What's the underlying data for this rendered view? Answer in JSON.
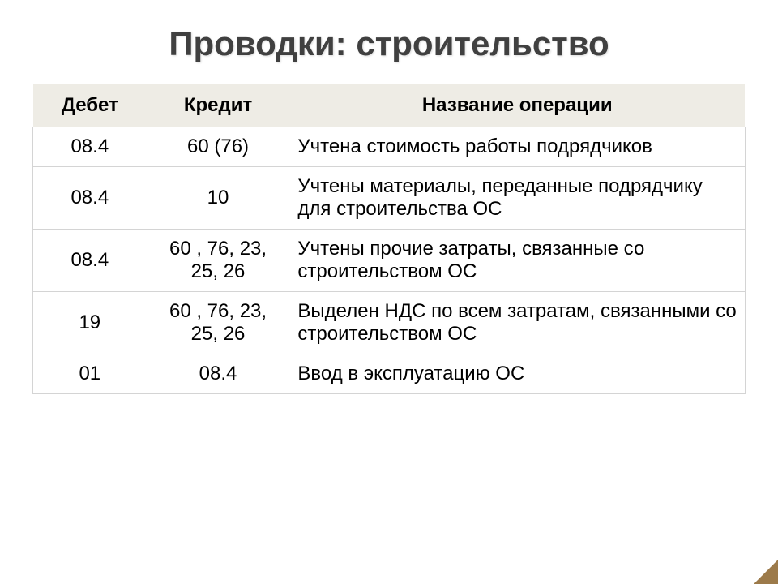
{
  "title": "Проводки: строительство",
  "table": {
    "columns": [
      {
        "label": "Дебет",
        "width": "16%",
        "align": "center"
      },
      {
        "label": "Кредит",
        "width": "20%",
        "align": "center"
      },
      {
        "label": "Название операции",
        "width": "64%",
        "align": "left"
      }
    ],
    "rows": [
      {
        "debit": "08.4",
        "credit": "60 (76)",
        "operation": "Учтена стоимость работы подрядчиков"
      },
      {
        "debit": "08.4",
        "credit": "10",
        "operation": "Учтены материалы, переданные подрядчику  для строительства ОС"
      },
      {
        "debit": "08.4",
        "credit": "60 , 76, 23, 25, 26",
        "operation": "Учтены прочие затраты, связанные со строительством ОС"
      },
      {
        "debit": "19",
        "credit": "60 , 76, 23, 25, 26",
        "operation": "Выделен НДС по всем затратам, связанными со строительством ОС"
      },
      {
        "debit": "01",
        "credit": "08.4",
        "operation": "Ввод в эксплуатацию ОС"
      }
    ],
    "header_bg": "#eeece5",
    "border_color": "#d4d4d4",
    "text_color": "#000000",
    "title_color": "#404040",
    "font_size_title": 42,
    "font_size_cell": 24
  }
}
